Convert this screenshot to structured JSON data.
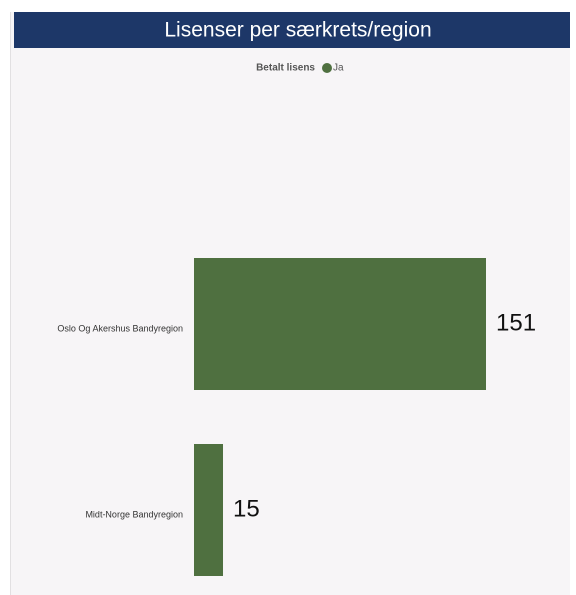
{
  "chart_data": {
    "type": "hbar",
    "title": "Lisenser per særkrets/region",
    "legend_title": "Betalt lisens",
    "categories": [
      "Oslo Og Akershus Bandyregion",
      "Midt-Norge Bandyregion"
    ],
    "series": [
      {
        "name": "Ja",
        "color": "#4f7040",
        "values": [
          151,
          15
        ]
      }
    ]
  }
}
